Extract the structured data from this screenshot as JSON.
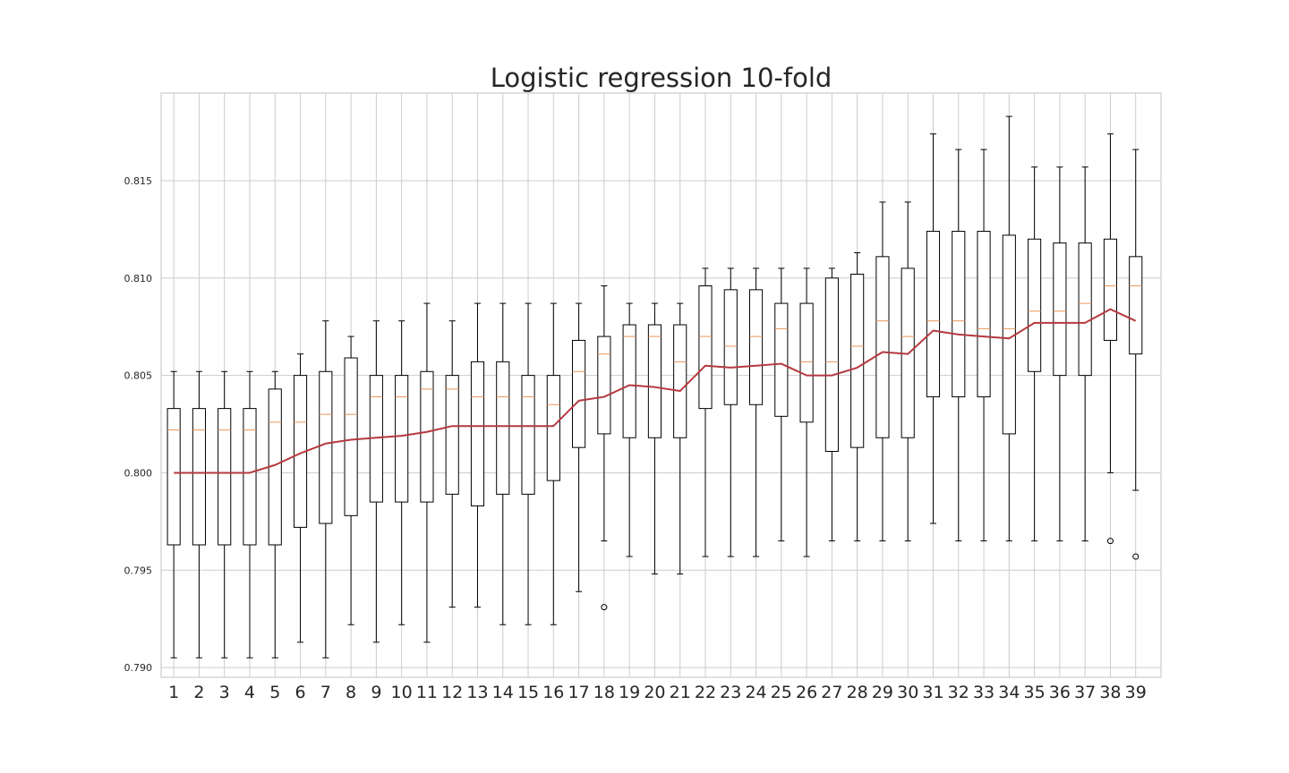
{
  "chart_data": {
    "type": "box",
    "title": "Logistic regression 10-fold",
    "xlabel": "",
    "ylabel": "",
    "ylim": [
      0.7895,
      0.8195
    ],
    "yticks": [
      "0.790",
      "0.795",
      "0.800",
      "0.805",
      "0.810",
      "0.815"
    ],
    "grid": true,
    "categories": [
      "1",
      "2",
      "3",
      "4",
      "5",
      "6",
      "7",
      "8",
      "9",
      "10",
      "11",
      "12",
      "13",
      "14",
      "15",
      "16",
      "17",
      "18",
      "19",
      "20",
      "21",
      "22",
      "23",
      "24",
      "25",
      "26",
      "27",
      "28",
      "29",
      "30",
      "31",
      "32",
      "33",
      "34",
      "35",
      "36",
      "37",
      "38",
      "39"
    ],
    "boxes": [
      {
        "whislo": 0.7905,
        "q1": 0.7963,
        "med": 0.8022,
        "q3": 0.8033,
        "whishi": 0.8052,
        "fliers": []
      },
      {
        "whislo": 0.7905,
        "q1": 0.7963,
        "med": 0.8022,
        "q3": 0.8033,
        "whishi": 0.8052,
        "fliers": []
      },
      {
        "whislo": 0.7905,
        "q1": 0.7963,
        "med": 0.8022,
        "q3": 0.8033,
        "whishi": 0.8052,
        "fliers": []
      },
      {
        "whislo": 0.7905,
        "q1": 0.7963,
        "med": 0.8022,
        "q3": 0.8033,
        "whishi": 0.8052,
        "fliers": []
      },
      {
        "whislo": 0.7905,
        "q1": 0.7963,
        "med": 0.8026,
        "q3": 0.8043,
        "whishi": 0.8052,
        "fliers": []
      },
      {
        "whislo": 0.7913,
        "q1": 0.7972,
        "med": 0.8026,
        "q3": 0.805,
        "whishi": 0.8061,
        "fliers": []
      },
      {
        "whislo": 0.7905,
        "q1": 0.7974,
        "med": 0.803,
        "q3": 0.8052,
        "whishi": 0.8078,
        "fliers": []
      },
      {
        "whislo": 0.7922,
        "q1": 0.7978,
        "med": 0.803,
        "q3": 0.8059,
        "whishi": 0.807,
        "fliers": []
      },
      {
        "whislo": 0.7913,
        "q1": 0.7985,
        "med": 0.8039,
        "q3": 0.805,
        "whishi": 0.8078,
        "fliers": []
      },
      {
        "whislo": 0.7922,
        "q1": 0.7985,
        "med": 0.8039,
        "q3": 0.805,
        "whishi": 0.8078,
        "fliers": []
      },
      {
        "whislo": 0.7913,
        "q1": 0.7985,
        "med": 0.8043,
        "q3": 0.8052,
        "whishi": 0.8087,
        "fliers": []
      },
      {
        "whislo": 0.7931,
        "q1": 0.7989,
        "med": 0.8043,
        "q3": 0.805,
        "whishi": 0.8078,
        "fliers": []
      },
      {
        "whislo": 0.7931,
        "q1": 0.7983,
        "med": 0.8039,
        "q3": 0.8057,
        "whishi": 0.8087,
        "fliers": []
      },
      {
        "whislo": 0.7922,
        "q1": 0.7989,
        "med": 0.8039,
        "q3": 0.8057,
        "whishi": 0.8087,
        "fliers": []
      },
      {
        "whislo": 0.7922,
        "q1": 0.7989,
        "med": 0.8039,
        "q3": 0.805,
        "whishi": 0.8087,
        "fliers": []
      },
      {
        "whislo": 0.7922,
        "q1": 0.7996,
        "med": 0.8035,
        "q3": 0.805,
        "whishi": 0.8087,
        "fliers": []
      },
      {
        "whislo": 0.7939,
        "q1": 0.8013,
        "med": 0.8052,
        "q3": 0.8068,
        "whishi": 0.8087,
        "fliers": []
      },
      {
        "whislo": 0.7965,
        "q1": 0.802,
        "med": 0.8061,
        "q3": 0.807,
        "whishi": 0.8096,
        "fliers": [
          0.7931
        ]
      },
      {
        "whislo": 0.7957,
        "q1": 0.8018,
        "med": 0.807,
        "q3": 0.8076,
        "whishi": 0.8087,
        "fliers": []
      },
      {
        "whislo": 0.7948,
        "q1": 0.8018,
        "med": 0.807,
        "q3": 0.8076,
        "whishi": 0.8087,
        "fliers": []
      },
      {
        "whislo": 0.7948,
        "q1": 0.8018,
        "med": 0.8057,
        "q3": 0.8076,
        "whishi": 0.8087,
        "fliers": []
      },
      {
        "whislo": 0.7957,
        "q1": 0.8033,
        "med": 0.807,
        "q3": 0.8096,
        "whishi": 0.8105,
        "fliers": []
      },
      {
        "whislo": 0.7957,
        "q1": 0.8035,
        "med": 0.8065,
        "q3": 0.8094,
        "whishi": 0.8105,
        "fliers": []
      },
      {
        "whislo": 0.7957,
        "q1": 0.8035,
        "med": 0.807,
        "q3": 0.8094,
        "whishi": 0.8105,
        "fliers": []
      },
      {
        "whislo": 0.7965,
        "q1": 0.8029,
        "med": 0.8074,
        "q3": 0.8087,
        "whishi": 0.8105,
        "fliers": []
      },
      {
        "whislo": 0.7957,
        "q1": 0.8026,
        "med": 0.8057,
        "q3": 0.8087,
        "whishi": 0.8105,
        "fliers": []
      },
      {
        "whislo": 0.7965,
        "q1": 0.8011,
        "med": 0.8057,
        "q3": 0.81,
        "whishi": 0.8105,
        "fliers": []
      },
      {
        "whislo": 0.7965,
        "q1": 0.8013,
        "med": 0.8065,
        "q3": 0.8102,
        "whishi": 0.8113,
        "fliers": []
      },
      {
        "whislo": 0.7965,
        "q1": 0.8018,
        "med": 0.8078,
        "q3": 0.8111,
        "whishi": 0.8139,
        "fliers": []
      },
      {
        "whislo": 0.7965,
        "q1": 0.8018,
        "med": 0.807,
        "q3": 0.8105,
        "whishi": 0.8139,
        "fliers": []
      },
      {
        "whislo": 0.7974,
        "q1": 0.8039,
        "med": 0.8078,
        "q3": 0.8124,
        "whishi": 0.8174,
        "fliers": []
      },
      {
        "whislo": 0.7965,
        "q1": 0.8039,
        "med": 0.8078,
        "q3": 0.8124,
        "whishi": 0.8166,
        "fliers": []
      },
      {
        "whislo": 0.7965,
        "q1": 0.8039,
        "med": 0.8074,
        "q3": 0.8124,
        "whishi": 0.8166,
        "fliers": []
      },
      {
        "whislo": 0.7965,
        "q1": 0.802,
        "med": 0.8074,
        "q3": 0.8122,
        "whishi": 0.8183,
        "fliers": []
      },
      {
        "whislo": 0.7965,
        "q1": 0.8052,
        "med": 0.8083,
        "q3": 0.812,
        "whishi": 0.8157,
        "fliers": []
      },
      {
        "whislo": 0.7965,
        "q1": 0.805,
        "med": 0.8083,
        "q3": 0.8118,
        "whishi": 0.8157,
        "fliers": []
      },
      {
        "whislo": 0.7965,
        "q1": 0.805,
        "med": 0.8087,
        "q3": 0.8118,
        "whishi": 0.8157,
        "fliers": []
      },
      {
        "whislo": 0.8,
        "q1": 0.8068,
        "med": 0.8096,
        "q3": 0.812,
        "whishi": 0.8174,
        "fliers": [
          0.7965
        ]
      },
      {
        "whislo": 0.7991,
        "q1": 0.8061,
        "med": 0.8096,
        "q3": 0.8111,
        "whishi": 0.8166,
        "fliers": [
          0.7957
        ]
      }
    ],
    "mean_line": [
      0.8,
      0.8,
      0.8,
      0.8,
      0.8004,
      0.801,
      0.8015,
      0.8017,
      0.8018,
      0.8019,
      0.8021,
      0.8024,
      0.8024,
      0.8024,
      0.8024,
      0.8024,
      0.8037,
      0.8039,
      0.8045,
      0.8044,
      0.8042,
      0.8055,
      0.8054,
      0.8055,
      0.8056,
      0.805,
      0.805,
      0.8054,
      0.8062,
      0.8061,
      0.8073,
      0.8071,
      0.807,
      0.8069,
      0.8077,
      0.8077,
      0.8077,
      0.8084,
      0.8078
    ],
    "colors": {
      "box": "#000000",
      "median": "#e8955a",
      "mean_line": "#b5393f",
      "grid": "#cccccc",
      "frame": "#cccccc",
      "text": "#262626"
    }
  }
}
